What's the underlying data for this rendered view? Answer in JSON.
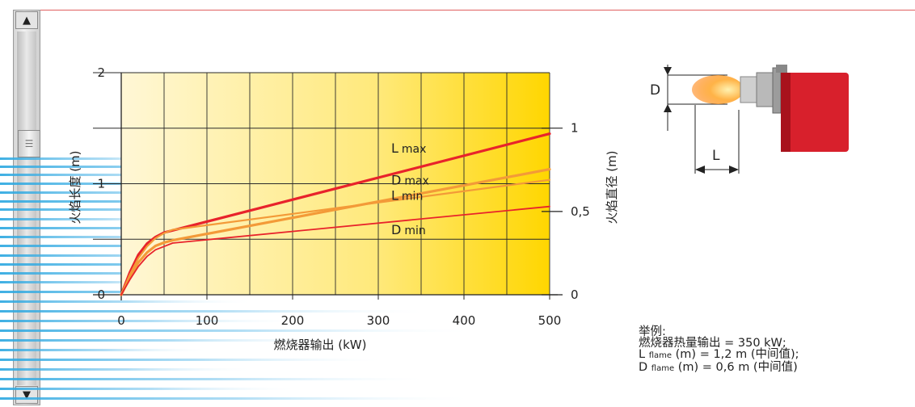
{
  "scrollbar": {
    "up_icon": "triangle-up",
    "down_icon": "triangle-down",
    "grip_icon": "grip-lines"
  },
  "colors": {
    "accent_line": "#e06060",
    "l_max": "#e8232b",
    "l_min": "#f39a38",
    "d_max": "#f39a38",
    "d_min": "#e8232b",
    "grid_fill_start": "#fff6cf",
    "grid_fill_end": "#ffd800"
  },
  "chart_data": {
    "type": "line",
    "xlabel": "燃烧器输出 (kW)",
    "ylabel_left": "火焰长度 (m)",
    "ylabel_right": "火焰直径 (m)",
    "xlim": [
      0,
      500
    ],
    "ylim_left": [
      0,
      2
    ],
    "ylim_right": [
      0,
      1.333
    ],
    "x_ticks": [
      "0",
      "100",
      "200",
      "300",
      "400",
      "500"
    ],
    "y_left_ticks": [
      {
        "label": "0",
        "value": 0
      },
      {
        "label": "1",
        "value": 1
      },
      {
        "label": "2",
        "value": 2
      }
    ],
    "y_right_ticks": [
      {
        "label": "0",
        "value": 0
      },
      {
        "label": "0,5",
        "value": 0.5
      },
      {
        "label": "1",
        "value": 1
      }
    ],
    "grid": true,
    "series": [
      {
        "name": "L max",
        "axis": "left",
        "x": [
          0,
          10,
          20,
          30,
          40,
          50,
          60,
          500
        ],
        "y": [
          0.0,
          0.2,
          0.36,
          0.46,
          0.52,
          0.56,
          0.58,
          1.45
        ]
      },
      {
        "name": "L min",
        "axis": "left",
        "x": [
          0,
          10,
          20,
          30,
          40,
          50,
          60,
          500
        ],
        "y": [
          0.0,
          0.16,
          0.29,
          0.38,
          0.44,
          0.47,
          0.49,
          1.13
        ]
      },
      {
        "name": "D max",
        "axis": "right",
        "x": [
          0,
          10,
          20,
          30,
          40,
          50,
          60,
          500
        ],
        "y": [
          0.0,
          0.12,
          0.22,
          0.29,
          0.34,
          0.37,
          0.39,
          0.69
        ]
      },
      {
        "name": "D min",
        "axis": "right",
        "x": [
          0,
          10,
          20,
          30,
          40,
          50,
          60,
          500
        ],
        "y": [
          0.0,
          0.09,
          0.17,
          0.23,
          0.27,
          0.29,
          0.31,
          0.53
        ]
      }
    ],
    "series_label_parts": [
      {
        "series": "L max",
        "letter": "L",
        "suffix": "max"
      },
      {
        "series": "L min",
        "letter": "L",
        "suffix": "min"
      },
      {
        "series": "D max",
        "letter": "D",
        "suffix": "max"
      },
      {
        "series": "D min",
        "letter": "D",
        "suffix": "min"
      }
    ]
  },
  "diagram": {
    "d_label": "D",
    "l_label": "L"
  },
  "example": {
    "title": "举例:",
    "line1": "燃烧器热量输出  = 350 kW;",
    "line2_prefix": "L",
    "line2_sub": "flame",
    "line2_rest": " (m) = 1,2 m (中间值);",
    "line3_prefix": "D",
    "line3_sub": "flame",
    "line3_rest": " (m) = 0,6 m (中间值)"
  }
}
